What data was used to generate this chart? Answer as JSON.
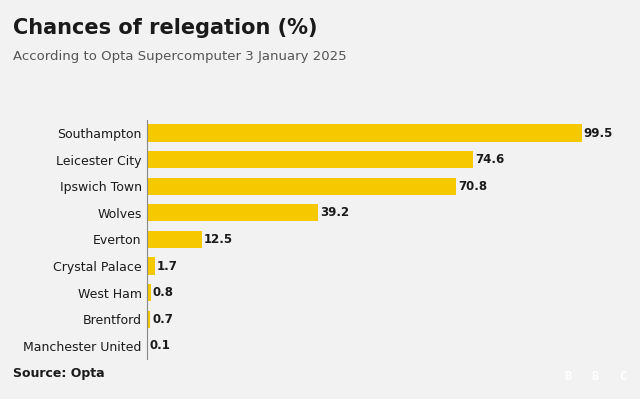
{
  "title": "Chances of relegation (%)",
  "subtitle": "According to Opta Supercomputer 3 January 2025",
  "source": "Source: Opta",
  "categories": [
    "Southampton",
    "Leicester City",
    "Ipswich Town",
    "Wolves",
    "Everton",
    "Crystal Palace",
    "West Ham",
    "Brentford",
    "Manchester United"
  ],
  "values": [
    99.5,
    74.6,
    70.8,
    39.2,
    12.5,
    1.7,
    0.8,
    0.7,
    0.1
  ],
  "bar_color": "#F5C800",
  "label_color": "#1a1a1a",
  "bg_color": "#F2F2F2",
  "accent_line_color": "#F5C800",
  "title_fontsize": 15,
  "subtitle_fontsize": 9.5,
  "source_fontsize": 9,
  "value_fontsize": 8.5,
  "ylabel_fontsize": 9,
  "xlim": [
    0,
    107
  ]
}
